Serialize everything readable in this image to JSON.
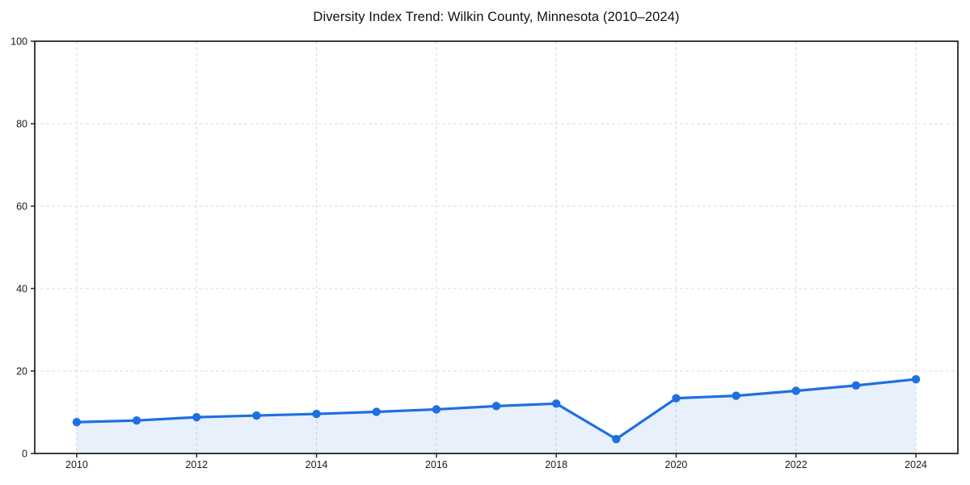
{
  "figure": {
    "background_color": "#ffffff",
    "text_color": "#1a1a1a"
  },
  "chart_data": {
    "type": "line",
    "title": "Diversity Index Trend: Wilkin County, Minnesota (2010–2024)",
    "xlabel": "",
    "ylabel": "",
    "x": [
      2010,
      2011,
      2012,
      2013,
      2014,
      2015,
      2016,
      2017,
      2018,
      2019,
      2020,
      2021,
      2022,
      2023,
      2024
    ],
    "series": [
      {
        "name": "Diversity Index",
        "values": [
          7.6,
          8.0,
          8.8,
          9.2,
          9.6,
          10.1,
          10.7,
          11.5,
          12.1,
          3.5,
          13.4,
          14.0,
          15.2,
          16.5,
          18.0
        ]
      }
    ],
    "xlim": [
      2009.3,
      2024.7
    ],
    "ylim": [
      0,
      100
    ],
    "xticks": [
      2010,
      2012,
      2014,
      2016,
      2018,
      2020,
      2022,
      2024
    ],
    "yticks": [
      0,
      20,
      40,
      60,
      80,
      100
    ],
    "grid": true,
    "grid_style": "dashed",
    "legend_position": "none",
    "line_color": "#1f6fe0",
    "marker": "circle",
    "area_fill": true,
    "fill_color": "rgba(31,111,224,0.10)",
    "grid_color": "#dcdcdc",
    "spine_color": "#1a1a1a"
  }
}
